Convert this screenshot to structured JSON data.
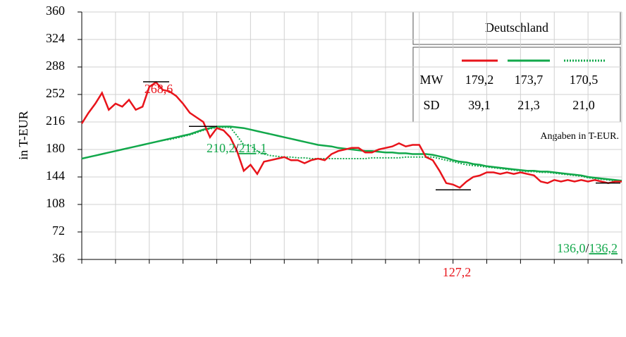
{
  "chart_data": {
    "type": "line",
    "y_label": "in T-EUR",
    "ylim": [
      36,
      360
    ],
    "yticks": [
      36,
      72,
      108,
      144,
      180,
      216,
      252,
      288,
      324,
      360
    ],
    "grid": true,
    "categories": [
      null,
      null,
      null,
      null,
      null,
      null,
      null,
      null,
      null,
      null,
      null,
      null,
      null,
      null,
      null,
      null,
      null,
      null,
      null,
      null,
      null,
      null,
      null,
      null,
      null,
      null,
      null,
      null,
      null,
      null,
      null,
      null,
      null,
      null,
      null,
      null,
      null,
      null,
      null,
      null,
      null,
      null,
      null,
      null,
      null,
      null,
      null,
      null,
      null,
      null,
      null,
      null,
      null,
      null,
      null,
      null,
      null,
      null,
      null,
      null,
      null,
      null,
      null,
      null,
      null,
      null,
      null,
      null,
      null,
      null,
      null,
      null,
      null,
      null,
      null,
      null,
      null,
      null,
      null,
      null,
      null
    ],
    "series": [
      {
        "color": "#e8141b",
        "style": "solid",
        "values": [
          214,
          228,
          240,
          254,
          232,
          240,
          236,
          245,
          232,
          236,
          262,
          268,
          258,
          256,
          250,
          240,
          228,
          222,
          216,
          196,
          208,
          205,
          196,
          178,
          152,
          160,
          148,
          164,
          166,
          168,
          170,
          166,
          166,
          162,
          166,
          168,
          166,
          174,
          178,
          180,
          182,
          182,
          176,
          176,
          180,
          182,
          184,
          188,
          184,
          186,
          186,
          170,
          166,
          152,
          136,
          134,
          130,
          138,
          144,
          146,
          150,
          150,
          148,
          150,
          148,
          150,
          148,
          146,
          138,
          136,
          140,
          138,
          140,
          138,
          140,
          138,
          140,
          138,
          136,
          138,
          138
        ]
      },
      {
        "color": "#12a84b",
        "style": "solid",
        "values": [
          168,
          170,
          172,
          174,
          176,
          178,
          180,
          182,
          184,
          186,
          188,
          190,
          192,
          194,
          196,
          198,
          200,
          203,
          206,
          208,
          210,
          210,
          210,
          209,
          208,
          206,
          204,
          202,
          200,
          198,
          196,
          194,
          192,
          190,
          188,
          186,
          185,
          184,
          182,
          181,
          180,
          179,
          178,
          178,
          177,
          176,
          176,
          175,
          175,
          174,
          174,
          174,
          173,
          171,
          169,
          166,
          164,
          163,
          161,
          160,
          158,
          157,
          156,
          155,
          154,
          153,
          152,
          152,
          151,
          151,
          150,
          149,
          148,
          147,
          146,
          144,
          143,
          142,
          141,
          140,
          139
        ]
      },
      {
        "color": "#12a84b",
        "style": "dotted",
        "values": [
          168,
          170,
          172,
          174,
          176,
          178,
          180,
          182,
          184,
          186,
          188,
          190,
          192,
          193,
          195,
          197,
          199,
          202,
          205,
          207,
          209,
          209,
          209,
          198,
          186,
          185,
          178,
          174,
          172,
          171,
          170,
          170,
          169,
          169,
          168,
          168,
          168,
          168,
          168,
          168,
          168,
          168,
          168,
          169,
          169,
          169,
          169,
          169,
          170,
          170,
          170,
          170,
          170,
          168,
          166,
          164,
          162,
          160,
          159,
          158,
          157,
          156,
          155,
          154,
          153,
          152,
          151,
          151,
          150,
          150,
          149,
          148,
          147,
          146,
          145,
          143,
          142,
          141,
          140,
          139,
          138
        ]
      }
    ],
    "annotations": [
      {
        "items": [
          {
            "value": 268.6,
            "label": "268,6",
            "color": "#e8141b"
          }
        ]
      },
      {
        "separator": "/",
        "items": [
          {
            "value": 210.2,
            "label": "210,2",
            "color": "#12a84b"
          },
          {
            "value": 211.1,
            "label": "211,1",
            "color": "#12a84b",
            "style": "dotted"
          }
        ]
      },
      {
        "items": [
          {
            "value": 127.2,
            "label": "127,2",
            "color": "#e8141b"
          }
        ]
      },
      {
        "separator": "/",
        "items": [
          {
            "value": 136.0,
            "label": "136,0",
            "color": "#12a84b"
          },
          {
            "value": 136.2,
            "label": "136,2",
            "color": "#12a84b",
            "style": "dotted"
          }
        ]
      }
    ],
    "stats_table": {
      "title": "Deutschland",
      "rows": [
        {
          "label": "MW",
          "values": [
            "179,2",
            "173,7",
            "170,5"
          ]
        },
        {
          "label": "SD",
          "values": [
            "39,1",
            "21,3",
            "21,0"
          ]
        }
      ],
      "note": "Angaben in T-EUR."
    }
  }
}
